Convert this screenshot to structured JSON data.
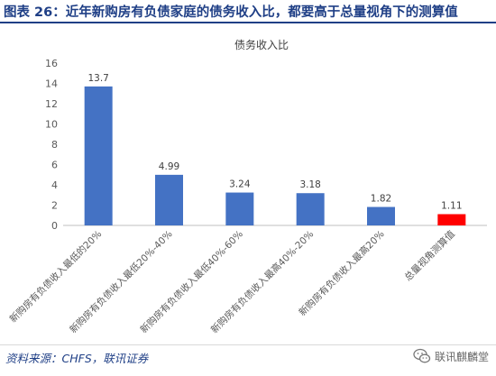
{
  "header": {
    "figure_title": "图表 26：近年新购房有负债家庭的债务收入比，都要高于总量视角下的测算值"
  },
  "footer": {
    "source": "资料来源：CHFS，联讯证券",
    "watermark": "联讯麒麟堂",
    "watermark_icon": "wechat-icon"
  },
  "colors": {
    "title_navy": "#1f3f86",
    "bar_blue": "#4472c4",
    "bar_red": "#ff0000"
  },
  "chart_data": {
    "type": "bar",
    "title": "债务收入比",
    "categories": [
      "新购房有负债收入最低的20%",
      "新购房有负债收入最低20%-40%",
      "新购房有负债收入最低40%-60%",
      "新购房有负债收入最高40%-20%",
      "新购房有负债收入最高20%",
      "总量视角测算值"
    ],
    "values": [
      13.7,
      4.99,
      3.24,
      3.18,
      1.82,
      1.11
    ],
    "value_labels": [
      "13.7",
      "4.99",
      "3.24",
      "3.18",
      "1.82",
      "1.11"
    ],
    "bar_colors": [
      "#4472c4",
      "#4472c4",
      "#4472c4",
      "#4472c4",
      "#4472c4",
      "#ff0000"
    ],
    "yticks": [
      "0",
      "2",
      "4",
      "6",
      "8",
      "10",
      "12",
      "14",
      "16"
    ],
    "ylim": [
      0,
      16
    ],
    "grid": false,
    "legend": "none",
    "xlabel": "",
    "ylabel": ""
  }
}
